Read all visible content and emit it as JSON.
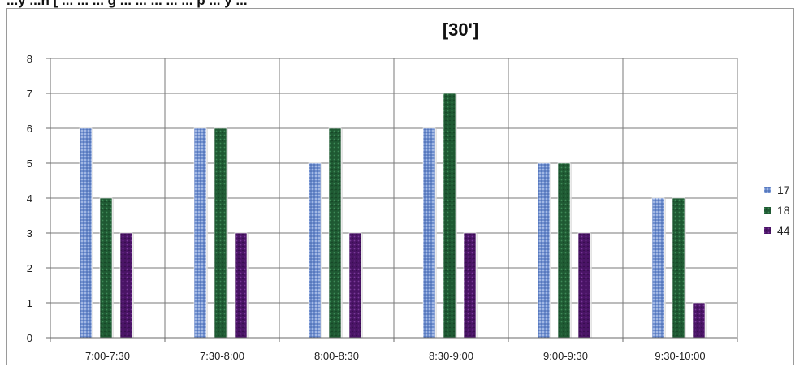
{
  "header_fragment": "...y ...h [ ... ... ... g ... ... ... ... ... p ... y ...",
  "chart_data": {
    "type": "bar",
    "title": "[30']",
    "xlabel": "",
    "ylabel": "",
    "ylim": [
      0,
      8
    ],
    "yticks": [
      0,
      1,
      2,
      3,
      4,
      5,
      6,
      7,
      8
    ],
    "grid": true,
    "legend_position": "right",
    "categories": [
      "7:00-7:30",
      "7:30-8:00",
      "8:00-8:30",
      "8:30-9:00",
      "9:00-9:30",
      "9:30-10:00"
    ],
    "series": [
      {
        "name": "17",
        "color": "#6f8fcf",
        "values": [
          6,
          6,
          5,
          6,
          5,
          4
        ]
      },
      {
        "name": "18",
        "color": "#1f5a33",
        "values": [
          4,
          6,
          6,
          7,
          5,
          4
        ]
      },
      {
        "name": "44",
        "color": "#4a1466",
        "values": [
          3,
          3,
          3,
          3,
          3,
          1
        ]
      }
    ]
  }
}
